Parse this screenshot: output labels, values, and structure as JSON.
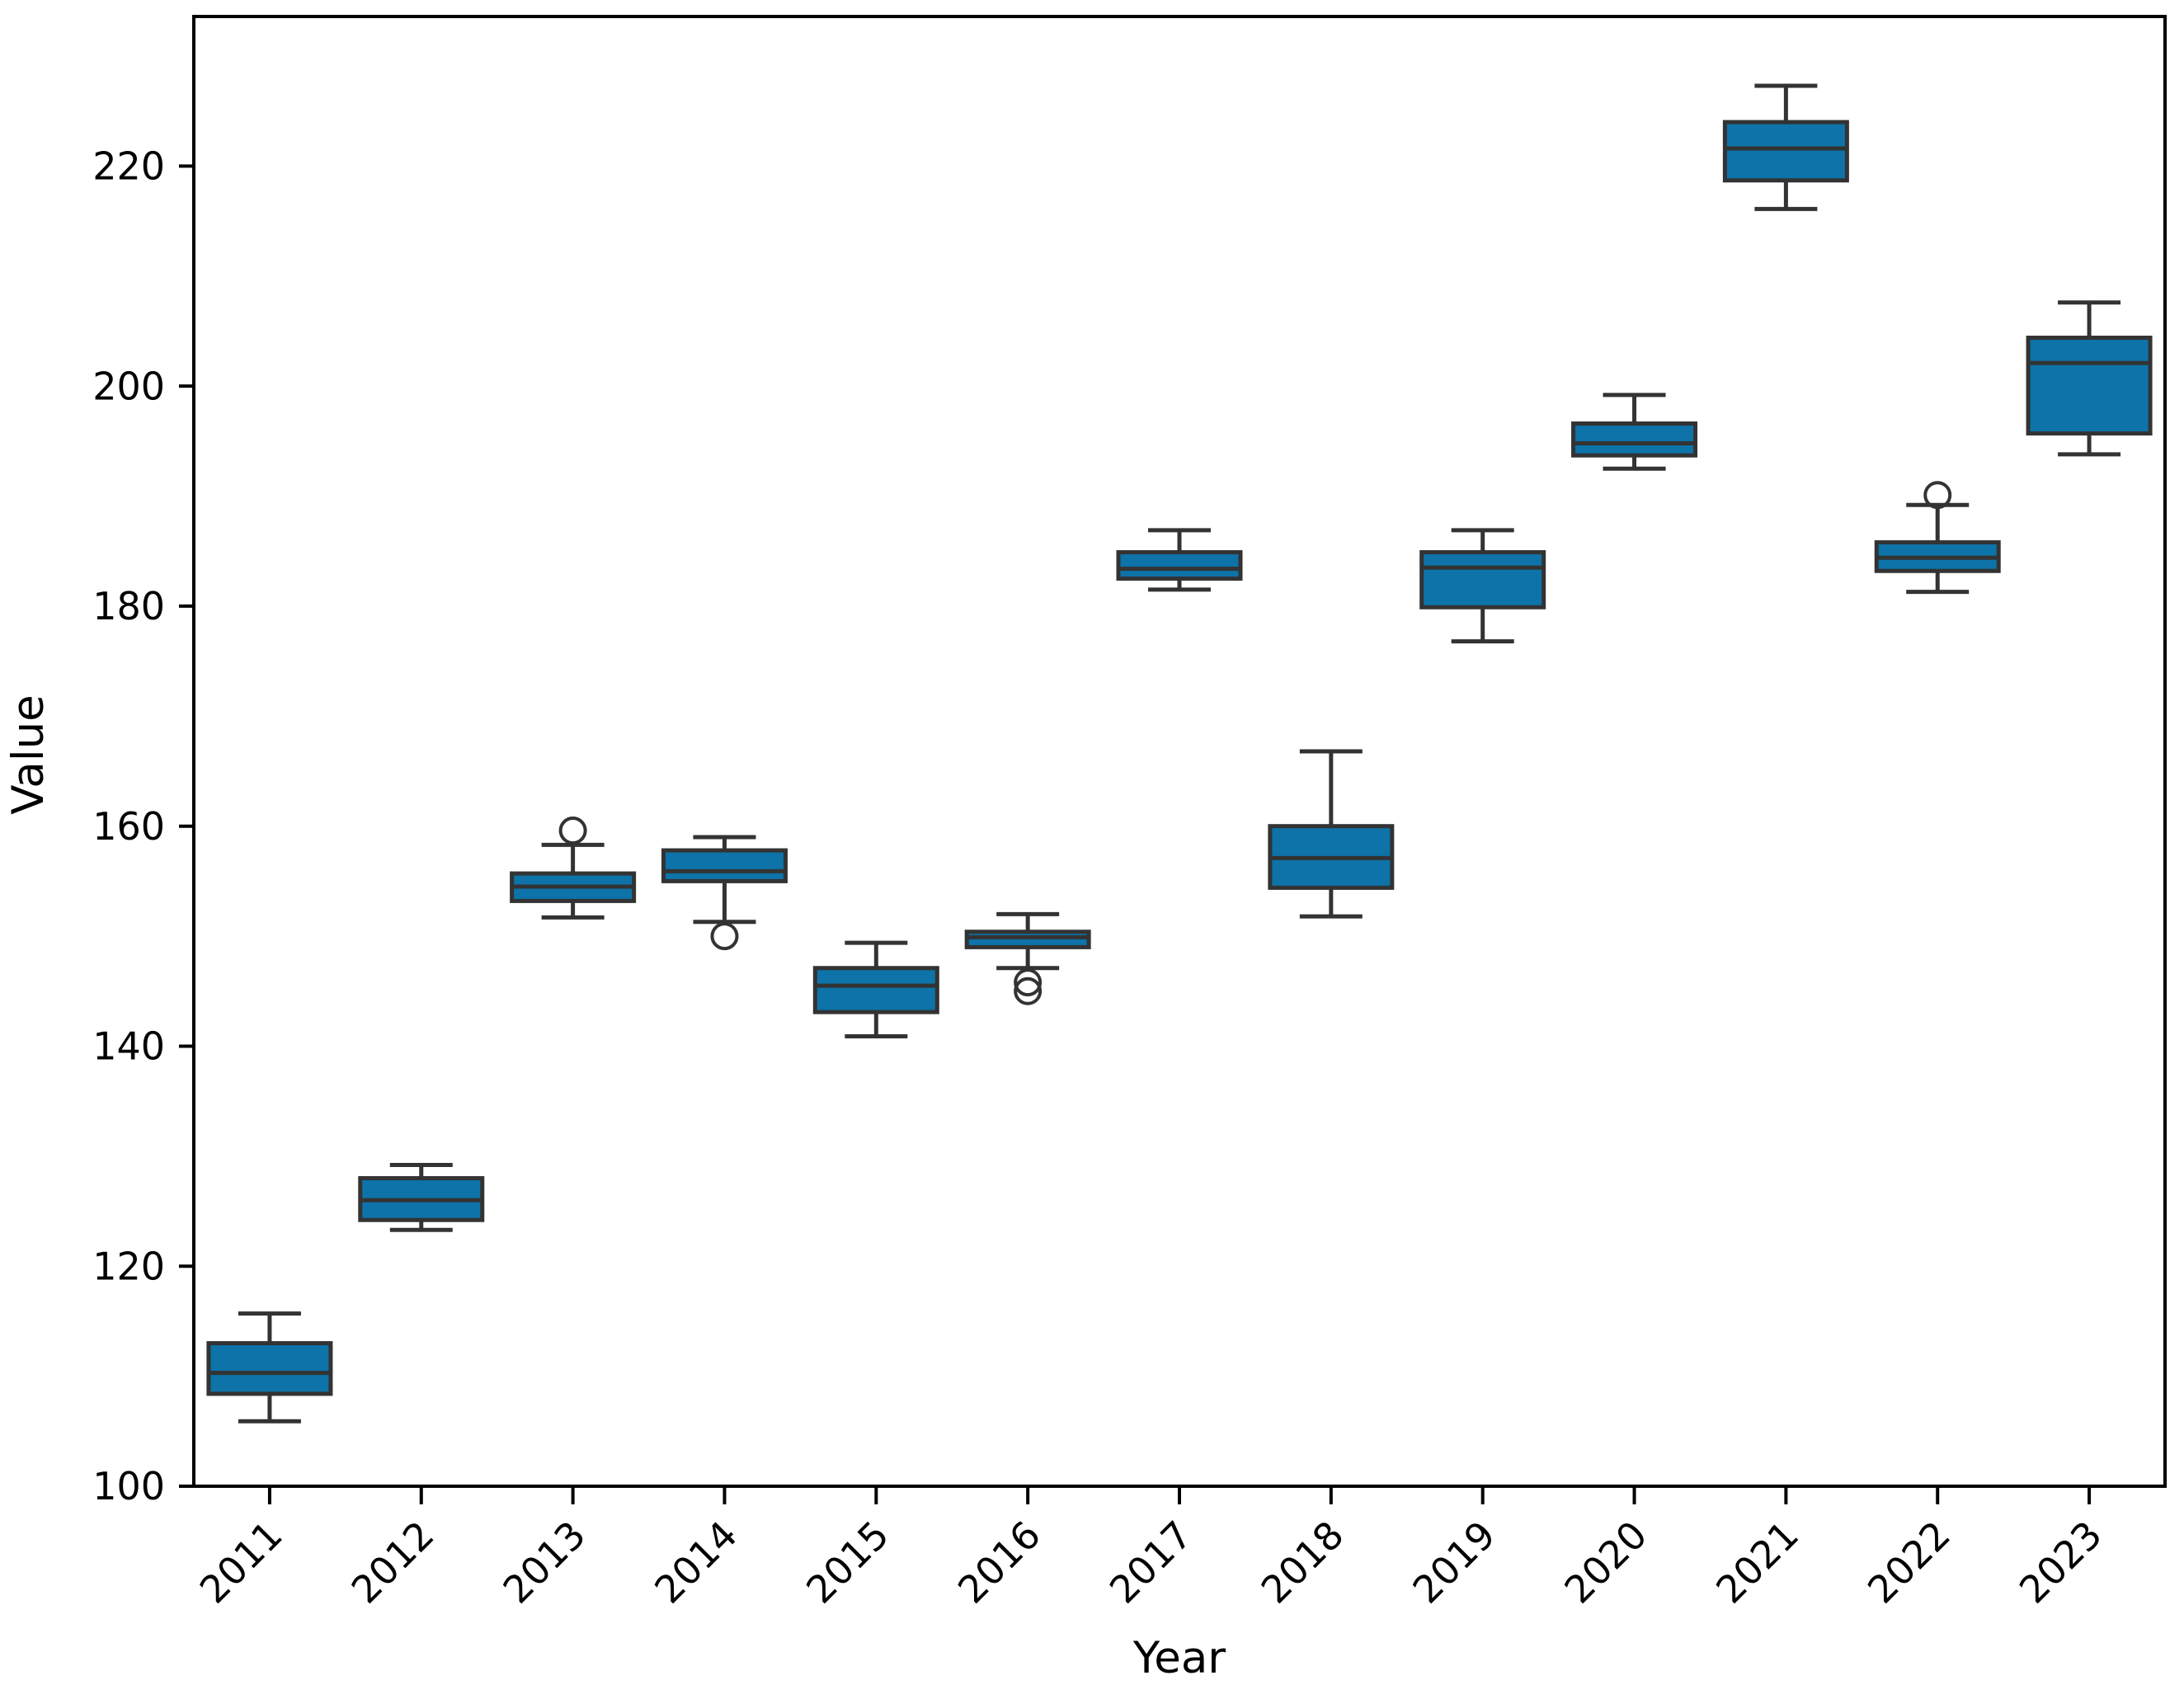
{
  "figure": {
    "background": "#ffffff"
  },
  "chart_data": {
    "type": "boxplot",
    "title": "",
    "xlabel": "Year",
    "ylabel": "Value",
    "ylim": [
      100,
      233.6
    ],
    "yticks": [
      100,
      120,
      140,
      160,
      180,
      200,
      220
    ],
    "grid": false,
    "legend": false,
    "box_fill": "#0d73a8",
    "line_color": "#333333",
    "spine_color": "#000000",
    "categories": [
      "2011",
      "2012",
      "2013",
      "2014",
      "2015",
      "2016",
      "2017",
      "2018",
      "2019",
      "2020",
      "2021",
      "2022",
      "2023"
    ],
    "series": [
      {
        "category": "2011",
        "whislo": 105.9,
        "q1": 108.4,
        "med": 110.3,
        "q3": 113.0,
        "whishi": 115.7,
        "fliers": []
      },
      {
        "category": "2012",
        "whislo": 123.3,
        "q1": 124.2,
        "med": 126.0,
        "q3": 128.0,
        "whishi": 129.2,
        "fliers": []
      },
      {
        "category": "2013",
        "whislo": 151.7,
        "q1": 153.2,
        "med": 154.5,
        "q3": 155.7,
        "whishi": 158.3,
        "fliers": [
          159.6
        ]
      },
      {
        "category": "2014",
        "whislo": 151.3,
        "q1": 155.0,
        "med": 155.9,
        "q3": 157.8,
        "whishi": 159.0,
        "fliers": [
          150.0
        ]
      },
      {
        "category": "2015",
        "whislo": 140.9,
        "q1": 143.1,
        "med": 145.5,
        "q3": 147.1,
        "whishi": 149.4,
        "fliers": []
      },
      {
        "category": "2016",
        "whislo": 147.1,
        "q1": 149.0,
        "med": 149.9,
        "q3": 150.4,
        "whishi": 152.0,
        "fliers": [
          145.8,
          145.0
        ]
      },
      {
        "category": "2017",
        "whislo": 181.5,
        "q1": 182.5,
        "med": 183.4,
        "q3": 184.9,
        "whishi": 186.9,
        "fliers": []
      },
      {
        "category": "2018",
        "whislo": 151.8,
        "q1": 154.4,
        "med": 157.1,
        "q3": 160.0,
        "whishi": 166.8,
        "fliers": []
      },
      {
        "category": "2019",
        "whislo": 176.8,
        "q1": 179.9,
        "med": 183.5,
        "q3": 184.9,
        "whishi": 186.9,
        "fliers": []
      },
      {
        "category": "2020",
        "whislo": 192.5,
        "q1": 193.7,
        "med": 194.8,
        "q3": 196.6,
        "whishi": 199.2,
        "fliers": []
      },
      {
        "category": "2021",
        "whislo": 216.1,
        "q1": 218.7,
        "med": 221.6,
        "q3": 224.0,
        "whishi": 227.3,
        "fliers": []
      },
      {
        "category": "2022",
        "whislo": 181.3,
        "q1": 183.2,
        "med": 184.4,
        "q3": 185.8,
        "whishi": 189.2,
        "fliers": [
          190.1
        ]
      },
      {
        "category": "2023",
        "whislo": 193.8,
        "q1": 195.7,
        "med": 202.1,
        "q3": 204.4,
        "whishi": 207.6,
        "fliers": []
      }
    ]
  }
}
